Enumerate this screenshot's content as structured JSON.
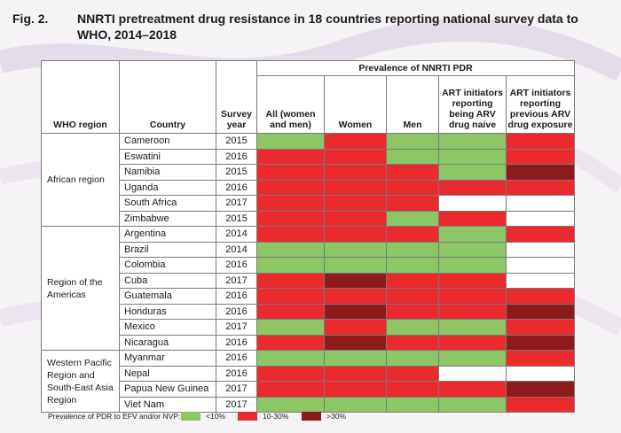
{
  "title": {
    "fig": "Fig. 2.",
    "text": "NNRTI pretreatment drug resistance in 18 countries reporting national survey data to WHO, 2014–2018"
  },
  "headers": {
    "region": "WHO region",
    "country": "Country",
    "year": "Survey year",
    "group": "Prevalence of NNRTI PDR",
    "cols": [
      "All (women and men)",
      "Women",
      "Men",
      "ART initiators reporting being ARV drug naive",
      "ART initiators reporting previous ARV drug exposure"
    ]
  },
  "colors": {
    "low": "#8cc665",
    "mid": "#ea2a2d",
    "high": "#8d1a1d",
    "none": "#ffffff"
  },
  "legend": {
    "label": "Prevalence of PDR to EFV and/or NVP:",
    "items": [
      {
        "key": "low",
        "label": "<10%"
      },
      {
        "key": "mid",
        "label": "10-30%"
      },
      {
        "key": "high",
        "label": ">30%"
      }
    ]
  },
  "chart_data": {
    "type": "table",
    "regions": [
      {
        "name": "African region",
        "rows": [
          {
            "country": "Cameroon",
            "year": "2015",
            "values": [
              "low",
              "mid",
              "low",
              "low",
              "mid"
            ]
          },
          {
            "country": "Eswatini",
            "year": "2016",
            "values": [
              "mid",
              "mid",
              "low",
              "low",
              "mid"
            ]
          },
          {
            "country": "Namibia",
            "year": "2015",
            "values": [
              "mid",
              "mid",
              "mid",
              "low",
              "high"
            ]
          },
          {
            "country": "Uganda",
            "year": "2016",
            "values": [
              "mid",
              "mid",
              "mid",
              "mid",
              "mid"
            ]
          },
          {
            "country": "South Africa",
            "year": "2017",
            "values": [
              "mid",
              "mid",
              "mid",
              "none",
              "none"
            ]
          },
          {
            "country": "Zimbabwe",
            "year": "2015",
            "values": [
              "mid",
              "mid",
              "low",
              "mid",
              "none"
            ]
          }
        ]
      },
      {
        "name": "Region of the Americas",
        "rows": [
          {
            "country": "Argentina",
            "year": "2014",
            "values": [
              "mid",
              "mid",
              "mid",
              "low",
              "mid"
            ]
          },
          {
            "country": "Brazil",
            "year": "2014",
            "values": [
              "low",
              "low",
              "low",
              "low",
              "none"
            ]
          },
          {
            "country": "Colombia",
            "year": "2016",
            "values": [
              "low",
              "low",
              "low",
              "low",
              "none"
            ]
          },
          {
            "country": "Cuba",
            "year": "2017",
            "values": [
              "mid",
              "high",
              "mid",
              "mid",
              "none"
            ]
          },
          {
            "country": "Guatemala",
            "year": "2016",
            "values": [
              "mid",
              "mid",
              "mid",
              "mid",
              "mid"
            ]
          },
          {
            "country": "Honduras",
            "year": "2016",
            "values": [
              "mid",
              "high",
              "mid",
              "mid",
              "high"
            ]
          },
          {
            "country": "Mexico",
            "year": "2017",
            "values": [
              "low",
              "mid",
              "low",
              "low",
              "mid"
            ]
          },
          {
            "country": "Nicaragua",
            "year": "2016",
            "values": [
              "mid",
              "high",
              "mid",
              "mid",
              "high"
            ]
          }
        ]
      },
      {
        "name": "Western Pacific Region and South-East Asia Region",
        "rows": [
          {
            "country": "Myanmar",
            "year": "2016",
            "values": [
              "low",
              "low",
              "low",
              "low",
              "mid"
            ]
          },
          {
            "country": "Nepal",
            "year": "2016",
            "values": [
              "mid",
              "mid",
              "mid",
              "none",
              "none"
            ]
          },
          {
            "country": "Papua New Guinea",
            "year": "2017",
            "values": [
              "mid",
              "mid",
              "mid",
              "mid",
              "high"
            ]
          },
          {
            "country": "Viet Nam",
            "year": "2017",
            "values": [
              "low",
              "low",
              "low",
              "low",
              "mid"
            ]
          }
        ]
      }
    ]
  }
}
